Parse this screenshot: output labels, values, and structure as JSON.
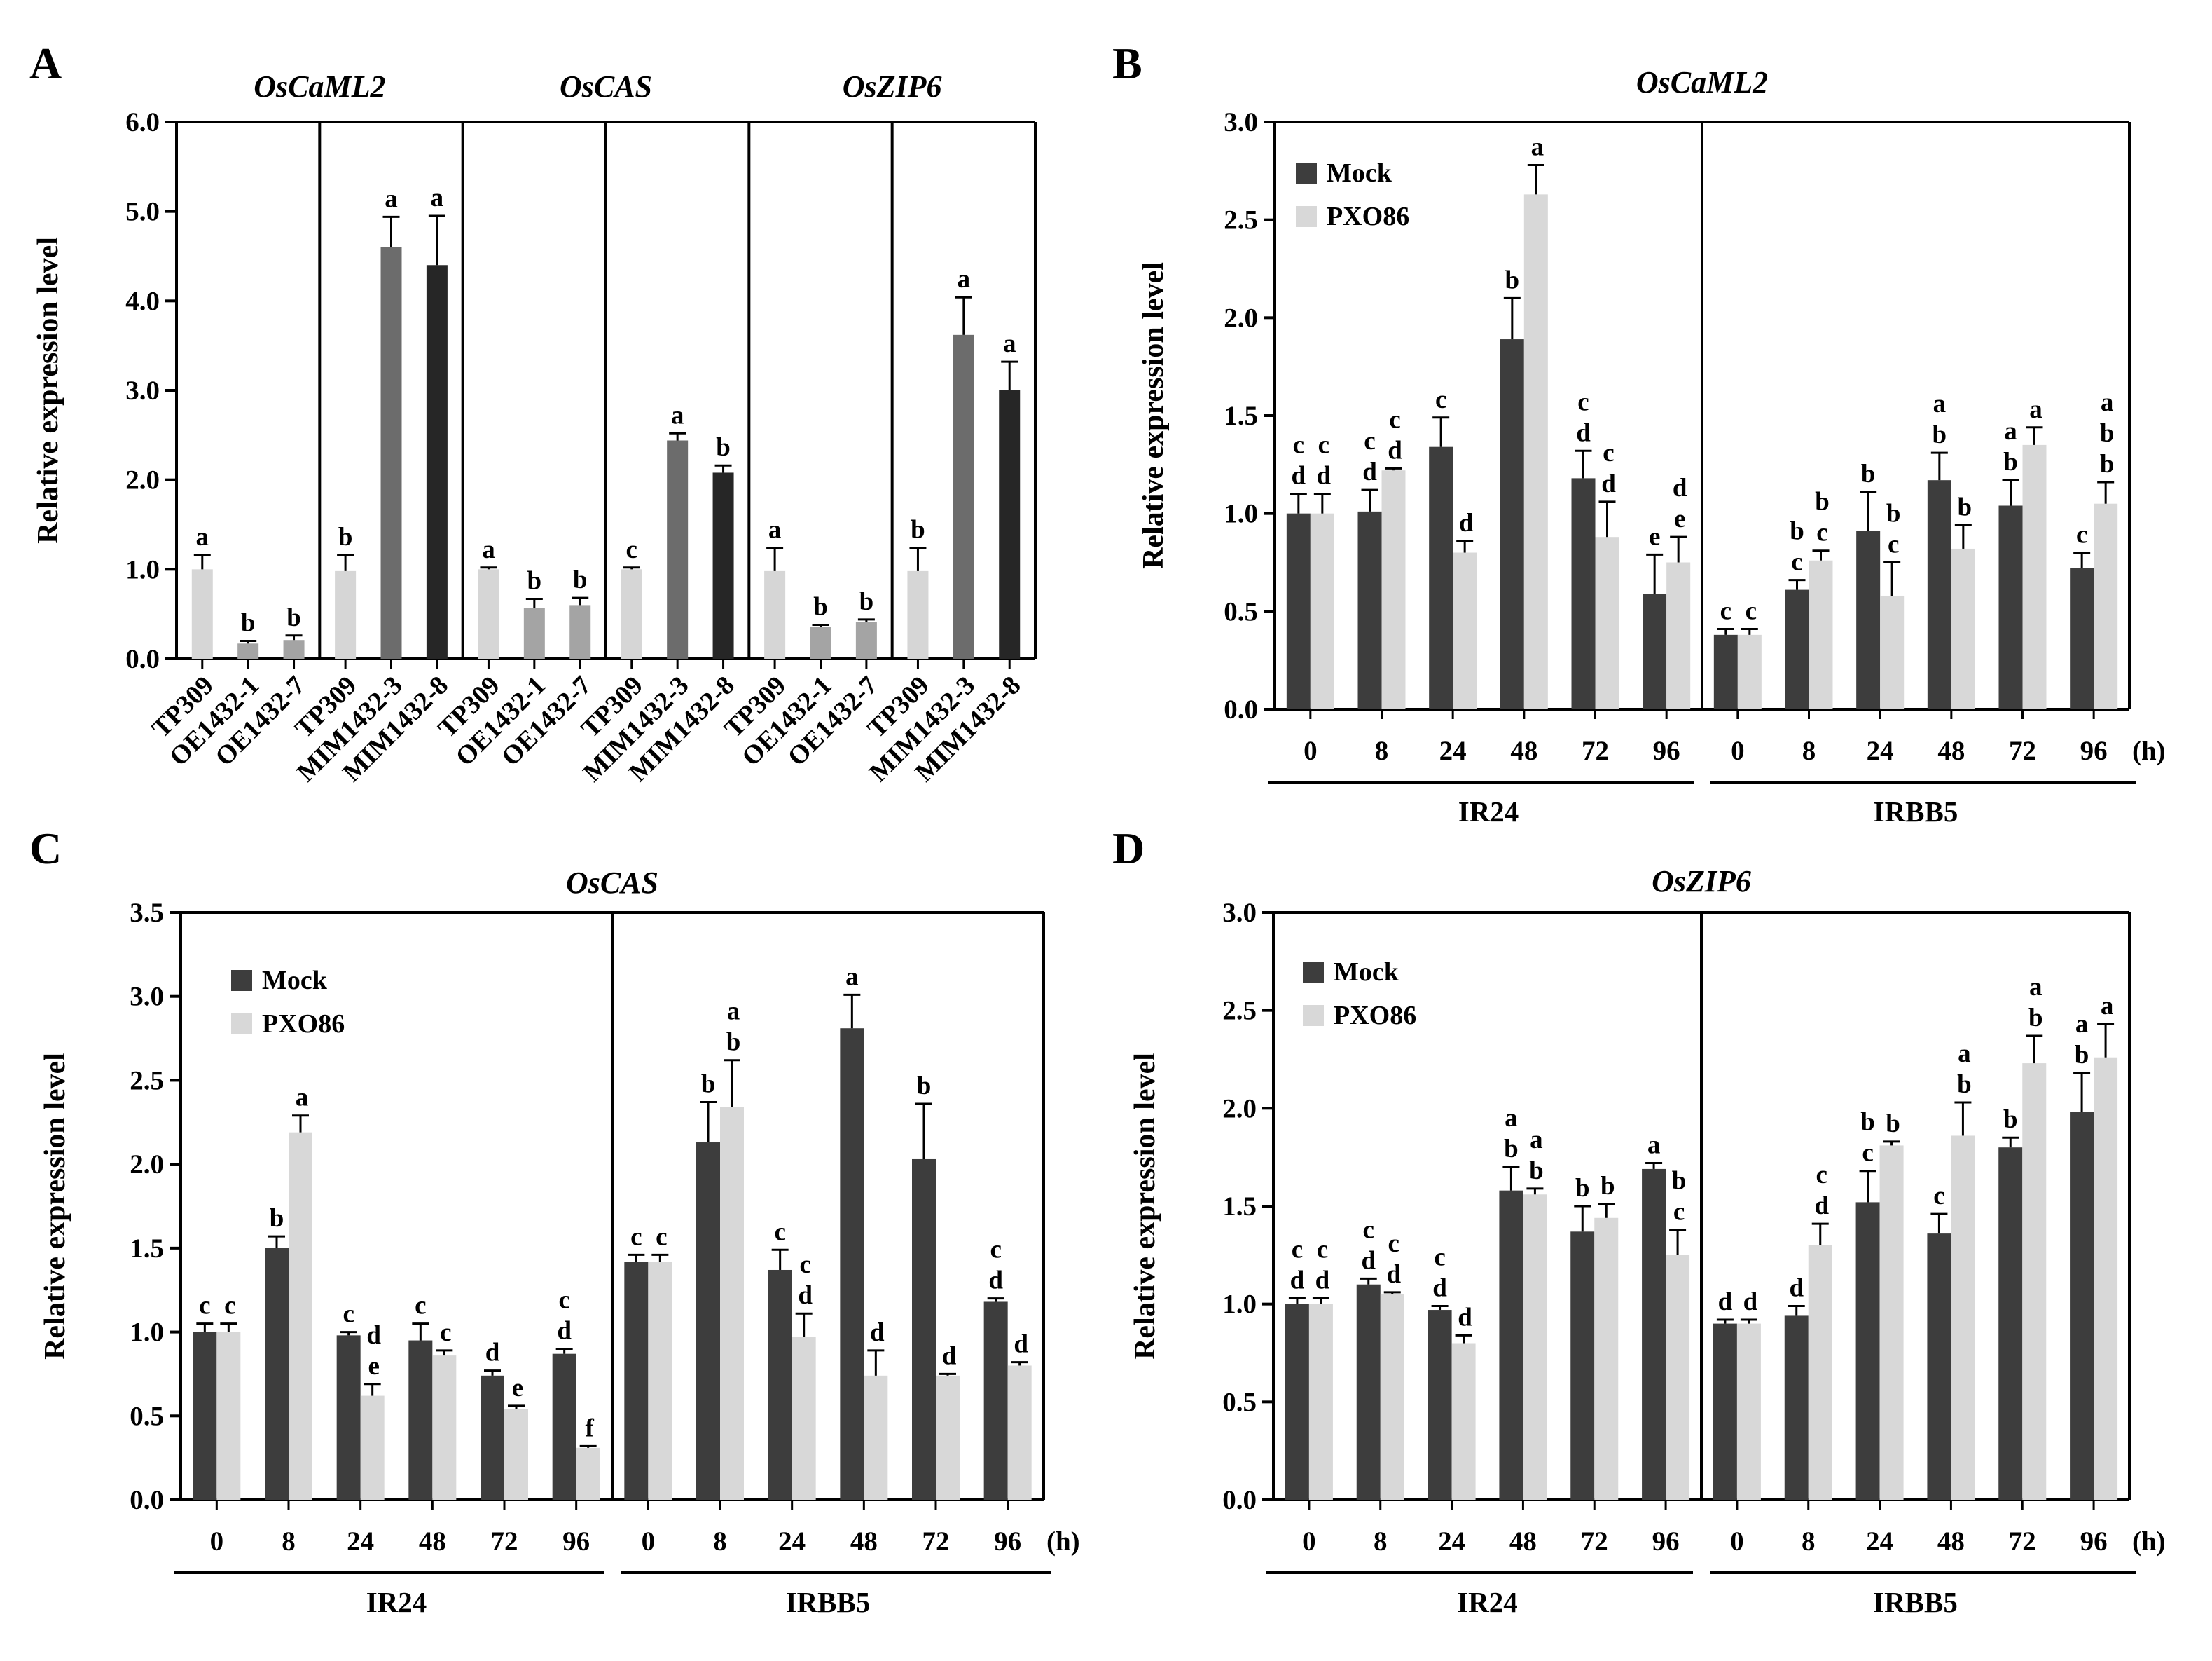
{
  "colors": {
    "mock": "#3d3d3d",
    "pxo86": "#d8d8d8",
    "tp309": "#d6d6d6",
    "oe": "#a4a4a4",
    "mim3": "#6c6c6c",
    "mim8": "#262626"
  },
  "chart_data": [
    {
      "panel": "A",
      "type": "bar",
      "ylabel": "Relative expression level",
      "ylim": [
        0,
        6
      ],
      "yticks": [
        "0.0",
        "1.0",
        "2.0",
        "3.0",
        "4.0",
        "5.0",
        "6.0"
      ],
      "groups": [
        {
          "gene": "OsCaML2",
          "sets": [
            {
              "categories": [
                "TP309",
                "OE1432-1",
                "OE1432-7"
              ],
              "values": [
                1.0,
                0.17,
                0.21
              ],
              "errors": [
                0.16,
                0.03,
                0.05
              ],
              "letters": [
                "a",
                "b",
                "b"
              ]
            },
            {
              "categories": [
                "TP309",
                "MIM1432-3",
                "MIM1432-8"
              ],
              "values": [
                0.98,
                4.6,
                4.4
              ],
              "errors": [
                0.18,
                0.34,
                0.55
              ],
              "letters": [
                "b",
                "a",
                "a"
              ]
            }
          ]
        },
        {
          "gene": "OsCAS",
          "sets": [
            {
              "categories": [
                "TP309",
                "OE1432-1",
                "OE1432-7"
              ],
              "values": [
                1.0,
                0.57,
                0.6
              ],
              "errors": [
                0.02,
                0.1,
                0.08
              ],
              "letters": [
                "a",
                "b",
                "b"
              ]
            },
            {
              "categories": [
                "TP309",
                "MIM1432-3",
                "MIM1432-8"
              ],
              "values": [
                1.0,
                2.44,
                2.08
              ],
              "errors": [
                0.02,
                0.08,
                0.08
              ],
              "letters": [
                "c",
                "a",
                "b"
              ]
            }
          ]
        },
        {
          "gene": "OsZIP6",
          "sets": [
            {
              "categories": [
                "TP309",
                "OE1432-1",
                "OE1432-7"
              ],
              "values": [
                0.98,
                0.36,
                0.41
              ],
              "errors": [
                0.26,
                0.02,
                0.03
              ],
              "letters": [
                "a",
                "b",
                "b"
              ]
            },
            {
              "categories": [
                "TP309",
                "MIM1432-3",
                "MIM1432-8"
              ],
              "values": [
                0.98,
                3.62,
                3.0
              ],
              "errors": [
                0.26,
                0.42,
                0.32
              ],
              "letters": [
                "b",
                "a",
                "a"
              ]
            }
          ]
        }
      ]
    },
    {
      "panel": "B",
      "type": "bar",
      "title": "OsCaML2",
      "ylabel": "Relative expression level",
      "ylim": [
        0,
        3
      ],
      "yticks": [
        "0.0",
        "0.5",
        "1.0",
        "1.5",
        "2.0",
        "2.5",
        "3.0"
      ],
      "legend": [
        "Mock",
        "PXO86"
      ],
      "legend_position": "top-left",
      "x": [
        "0",
        "8",
        "24",
        "48",
        "72",
        "96"
      ],
      "x_unit": "(h)",
      "groups": [
        {
          "name": "IR24",
          "mock": {
            "values": [
              1.0,
              1.01,
              1.34,
              1.89,
              1.18,
              0.59
            ],
            "errors": [
              0.1,
              0.11,
              0.15,
              0.21,
              0.14,
              0.2
            ],
            "letters": [
              "c\nd",
              "c\nd",
              "c",
              "b",
              "c\nd",
              "e"
            ]
          },
          "pxo86": {
            "values": [
              1.0,
              1.22,
              0.8,
              2.63,
              0.88,
              0.75
            ],
            "errors": [
              0.1,
              0.01,
              0.06,
              0.15,
              0.18,
              0.13
            ],
            "letters": [
              "c\nd",
              "c\nd",
              "d",
              "a",
              "c\nd",
              "d\ne"
            ]
          }
        },
        {
          "name": "IRBB5",
          "mock": {
            "values": [
              0.38,
              0.61,
              0.91,
              1.17,
              1.04,
              0.72
            ],
            "errors": [
              0.03,
              0.05,
              0.2,
              0.14,
              0.13,
              0.08
            ],
            "letters": [
              "c",
              "b\nc",
              "b",
              "a\nb",
              "a\nb",
              "c"
            ]
          },
          "pxo86": {
            "values": [
              0.38,
              0.76,
              0.58,
              0.82,
              1.35,
              1.05
            ],
            "errors": [
              0.03,
              0.05,
              0.17,
              0.12,
              0.09,
              0.11
            ],
            "letters": [
              "c",
              "b\nc",
              "b\nc",
              "b",
              "a",
              "a\nb\nb"
            ]
          }
        }
      ]
    },
    {
      "panel": "C",
      "type": "bar",
      "title": "OsCAS",
      "ylabel": "Relative expression level",
      "ylim": [
        0,
        3.5
      ],
      "yticks": [
        "0.0",
        "0.5",
        "1.0",
        "1.5",
        "2.0",
        "2.5",
        "3.0",
        "3.5"
      ],
      "legend": [
        "Mock",
        "PXO86"
      ],
      "legend_position": "top-left",
      "x": [
        "0",
        "8",
        "24",
        "48",
        "72",
        "96"
      ],
      "x_unit": "(h)",
      "groups": [
        {
          "name": "IR24",
          "mock": {
            "values": [
              1.0,
              1.5,
              0.98,
              0.95,
              0.74,
              0.87
            ],
            "errors": [
              0.05,
              0.07,
              0.02,
              0.1,
              0.03,
              0.03
            ],
            "letters": [
              "c",
              "b",
              "c",
              "c",
              "d",
              "c\nd"
            ]
          },
          "pxo86": {
            "values": [
              1.0,
              2.19,
              0.62,
              0.86,
              0.54,
              0.31
            ],
            "errors": [
              0.05,
              0.1,
              0.07,
              0.03,
              0.02,
              0.01
            ],
            "letters": [
              "c",
              "a",
              "d\ne",
              "c",
              "e",
              "f"
            ]
          }
        },
        {
          "name": "IRBB5",
          "mock": {
            "values": [
              1.42,
              2.13,
              1.37,
              2.81,
              2.03,
              1.18
            ],
            "errors": [
              0.04,
              0.24,
              0.12,
              0.2,
              0.33,
              0.02
            ],
            "letters": [
              "c",
              "b",
              "c",
              "a",
              "b",
              "c\nd"
            ]
          },
          "pxo86": {
            "values": [
              1.42,
              2.34,
              0.97,
              0.74,
              0.74,
              0.8
            ],
            "errors": [
              0.04,
              0.28,
              0.14,
              0.15,
              0.01,
              0.02
            ],
            "letters": [
              "c",
              "a\nb",
              "c\nd",
              "d",
              "d",
              "d"
            ]
          }
        }
      ]
    },
    {
      "panel": "D",
      "type": "bar",
      "title": "OsZIP6",
      "ylabel": "Relative expression level",
      "ylim": [
        0,
        3
      ],
      "yticks": [
        "0.0",
        "0.5",
        "1.0",
        "1.5",
        "2.0",
        "2.5",
        "3.0"
      ],
      "legend": [
        "Mock",
        "PXO86"
      ],
      "legend_position": "top-left",
      "x": [
        "0",
        "8",
        "24",
        "48",
        "72",
        "96"
      ],
      "x_unit": "(h)",
      "groups": [
        {
          "name": "IR24",
          "mock": {
            "values": [
              1.0,
              1.1,
              0.97,
              1.58,
              1.37,
              1.69
            ],
            "errors": [
              0.03,
              0.03,
              0.02,
              0.12,
              0.13,
              0.03
            ],
            "letters": [
              "c\nd",
              "c\nd",
              "c\nd",
              "a\nb",
              "b",
              "a"
            ]
          },
          "pxo86": {
            "values": [
              1.0,
              1.05,
              0.8,
              1.56,
              1.44,
              1.25
            ],
            "errors": [
              0.03,
              0.01,
              0.04,
              0.03,
              0.07,
              0.13
            ],
            "letters": [
              "c\nd",
              "c\nd",
              "d",
              "a\nb",
              "b",
              "b\nc"
            ]
          }
        },
        {
          "name": "IRBB5",
          "mock": {
            "values": [
              0.9,
              0.94,
              1.52,
              1.36,
              1.8,
              1.98
            ],
            "errors": [
              0.02,
              0.05,
              0.16,
              0.1,
              0.05,
              0.2
            ],
            "letters": [
              "d",
              "d",
              "b\nc",
              "c",
              "b",
              "a\nb"
            ]
          },
          "pxo86": {
            "values": [
              0.9,
              1.3,
              1.81,
              1.86,
              2.23,
              2.26
            ],
            "errors": [
              0.02,
              0.11,
              0.02,
              0.17,
              0.14,
              0.17
            ],
            "letters": [
              "d",
              "c\nd",
              "b",
              "a\nb",
              "a\nb",
              "a"
            ]
          }
        }
      ]
    }
  ]
}
